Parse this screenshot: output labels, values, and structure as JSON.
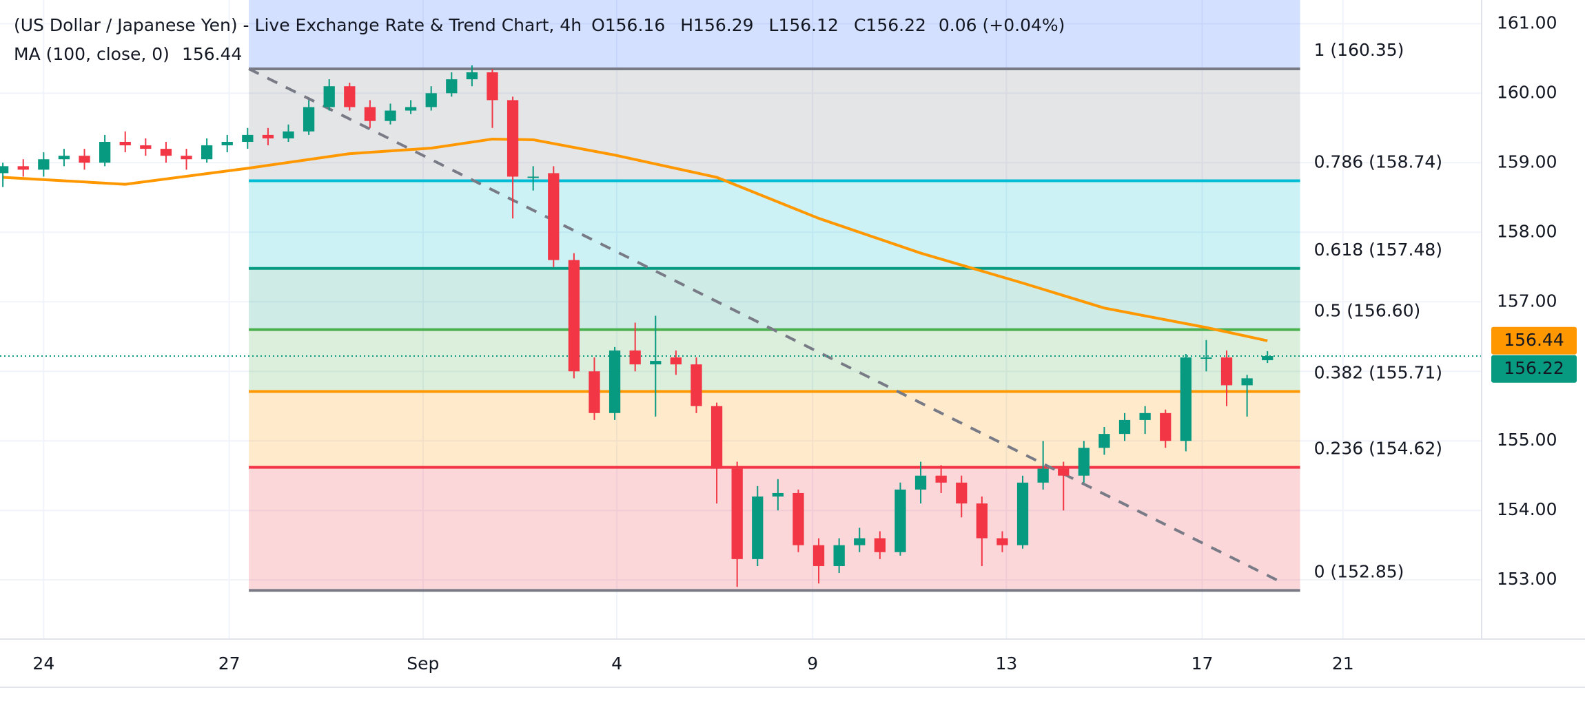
{
  "header": {
    "title": "(US Dollar / Japanese Yen) - Live Exchange Rate & Trend Chart, 4h",
    "ohlc": [
      {
        "label": "O",
        "value": "156.16"
      },
      {
        "label": "H",
        "value": "156.29"
      },
      {
        "label": "L",
        "value": "156.12"
      },
      {
        "label": "C",
        "value": "156.22"
      }
    ],
    "change": "0.06 (+0.04%)",
    "indicator": "MA (100, close, 0)",
    "indicator_value": "156.44"
  },
  "chart_data": {
    "type": "candlestick",
    "open": [
      158.85,
      158.95,
      158.9,
      159.05,
      159.1,
      159.0,
      159.3,
      159.25,
      159.2,
      159.1,
      159.05,
      159.25,
      159.3,
      159.4,
      159.35,
      159.45,
      159.8,
      160.1,
      159.8,
      159.6,
      159.75,
      159.8,
      160.0,
      160.2,
      160.3,
      159.9,
      158.8,
      158.85,
      157.6,
      156.0,
      155.4,
      156.3,
      156.1,
      156.2,
      156.1,
      155.5,
      154.6,
      153.3,
      154.2,
      154.25,
      153.5,
      153.2,
      153.5,
      153.6,
      153.4,
      154.3,
      154.5,
      154.4,
      154.1,
      153.6,
      153.5,
      154.4,
      154.6,
      154.5,
      154.9,
      155.1,
      155.3,
      155.4,
      155.0,
      156.2,
      156.2,
      155.8,
      156.16
    ],
    "high": [
      159.0,
      159.05,
      159.15,
      159.2,
      159.2,
      159.4,
      159.45,
      159.35,
      159.3,
      159.2,
      159.35,
      159.4,
      159.5,
      159.5,
      159.55,
      159.9,
      160.2,
      160.15,
      159.9,
      159.85,
      159.9,
      160.1,
      160.3,
      160.4,
      160.35,
      159.95,
      158.95,
      158.95,
      157.7,
      156.2,
      156.35,
      156.7,
      156.8,
      156.3,
      156.2,
      155.55,
      154.7,
      154.35,
      154.45,
      154.3,
      153.6,
      153.6,
      153.75,
      153.7,
      154.4,
      154.7,
      154.65,
      154.5,
      154.2,
      153.7,
      154.5,
      155.0,
      154.7,
      155.0,
      155.2,
      155.4,
      155.5,
      155.45,
      156.25,
      156.45,
      156.3,
      155.95,
      156.29
    ],
    "low": [
      158.65,
      158.8,
      158.8,
      158.95,
      158.9,
      158.95,
      159.15,
      159.1,
      159.0,
      158.9,
      159.0,
      159.15,
      159.2,
      159.25,
      159.3,
      159.4,
      159.75,
      159.75,
      159.5,
      159.55,
      159.7,
      159.75,
      159.95,
      160.1,
      159.5,
      158.2,
      158.6,
      157.5,
      155.9,
      155.3,
      155.3,
      156.0,
      155.35,
      155.95,
      155.4,
      154.1,
      152.9,
      153.2,
      154.0,
      153.4,
      152.95,
      153.1,
      153.4,
      153.3,
      153.35,
      154.1,
      154.25,
      153.9,
      153.2,
      153.4,
      153.45,
      154.3,
      154.0,
      154.4,
      154.8,
      155.0,
      155.1,
      154.9,
      154.85,
      156.0,
      155.5,
      155.35,
      156.12
    ],
    "close": [
      158.95,
      158.9,
      159.05,
      159.1,
      159.0,
      159.3,
      159.25,
      159.2,
      159.1,
      159.05,
      159.25,
      159.3,
      159.4,
      159.35,
      159.45,
      159.8,
      160.1,
      159.8,
      159.6,
      159.75,
      159.8,
      160.0,
      160.2,
      160.3,
      159.9,
      158.8,
      158.8,
      157.6,
      156.0,
      155.4,
      156.3,
      156.1,
      156.15,
      156.1,
      155.5,
      154.6,
      153.3,
      154.2,
      154.25,
      153.5,
      153.2,
      153.5,
      153.6,
      153.4,
      154.3,
      154.5,
      154.4,
      154.1,
      153.6,
      153.5,
      154.4,
      154.6,
      154.5,
      154.9,
      155.1,
      155.3,
      155.4,
      155.0,
      156.2,
      156.2,
      155.8,
      155.9,
      156.22
    ],
    "up_color": "#089981",
    "down_color": "#f23645",
    "xlim": [
      -0.14,
      72.5
    ],
    "xticks": [
      {
        "value": 2.0,
        "label": "24"
      },
      {
        "value": 11.1,
        "label": "27"
      },
      {
        "value": 20.6,
        "label": "Sep"
      },
      {
        "value": 30.1,
        "label": "4"
      },
      {
        "value": 39.7,
        "label": "9"
      },
      {
        "value": 49.2,
        "label": "13"
      },
      {
        "value": 58.8,
        "label": "17"
      },
      {
        "value": 65.7,
        "label": "21"
      }
    ],
    "ylim": [
      152.15,
      161.34
    ],
    "yticks": [
      {
        "value": 153,
        "label": "153.00"
      },
      {
        "value": 154,
        "label": "154.00"
      },
      {
        "value": 155,
        "label": "155.00"
      },
      {
        "value": 156,
        "label": "156.00"
      },
      {
        "value": 157,
        "label": "157.00"
      },
      {
        "value": 158,
        "label": "158.00"
      },
      {
        "value": 159,
        "label": "159.00"
      },
      {
        "value": 160,
        "label": "160.00"
      },
      {
        "value": 161,
        "label": "161.00"
      }
    ],
    "grid": true,
    "moving_average": {
      "color": "#ff9800",
      "x": [
        0,
        6,
        12,
        17,
        21,
        24,
        26,
        30,
        35,
        40,
        45,
        50,
        54,
        59,
        62
      ],
      "values": [
        158.79,
        158.69,
        158.92,
        159.13,
        159.21,
        159.34,
        159.33,
        159.11,
        158.79,
        158.2,
        157.7,
        157.27,
        156.91,
        156.63,
        156.44
      ]
    },
    "fib_x": [
      12.06,
      63.6
    ],
    "fib_top_color": "#2962ff",
    "fib_levels": [
      {
        "label": "1 (160.35)",
        "value": 160.35,
        "color": "#787b86"
      },
      {
        "label": "0.786 (158.74)",
        "value": 158.74,
        "color": "#00bcd4"
      },
      {
        "label": "0.618 (157.48)",
        "value": 157.48,
        "color": "#089981"
      },
      {
        "label": "0.5 (156.60)",
        "value": 156.6,
        "color": "#4caf50"
      },
      {
        "label": "0.382 (155.71)",
        "value": 155.71,
        "color": "#ff9800"
      },
      {
        "label": "0.236 (154.62)",
        "value": 154.62,
        "color": "#f23645"
      },
      {
        "label": "0 (152.85)",
        "value": 152.85,
        "color": "#787b86"
      }
    ],
    "trend_line": {
      "x": [
        12.06,
        62.8
      ],
      "y": [
        160.35,
        152.95
      ],
      "color": "#787b86"
    },
    "price_badges": [
      {
        "value": 156.44,
        "label": "156.44",
        "color": "#ff9800"
      },
      {
        "value": 156.22,
        "label": "156.22",
        "color": "#089981"
      }
    ]
  }
}
